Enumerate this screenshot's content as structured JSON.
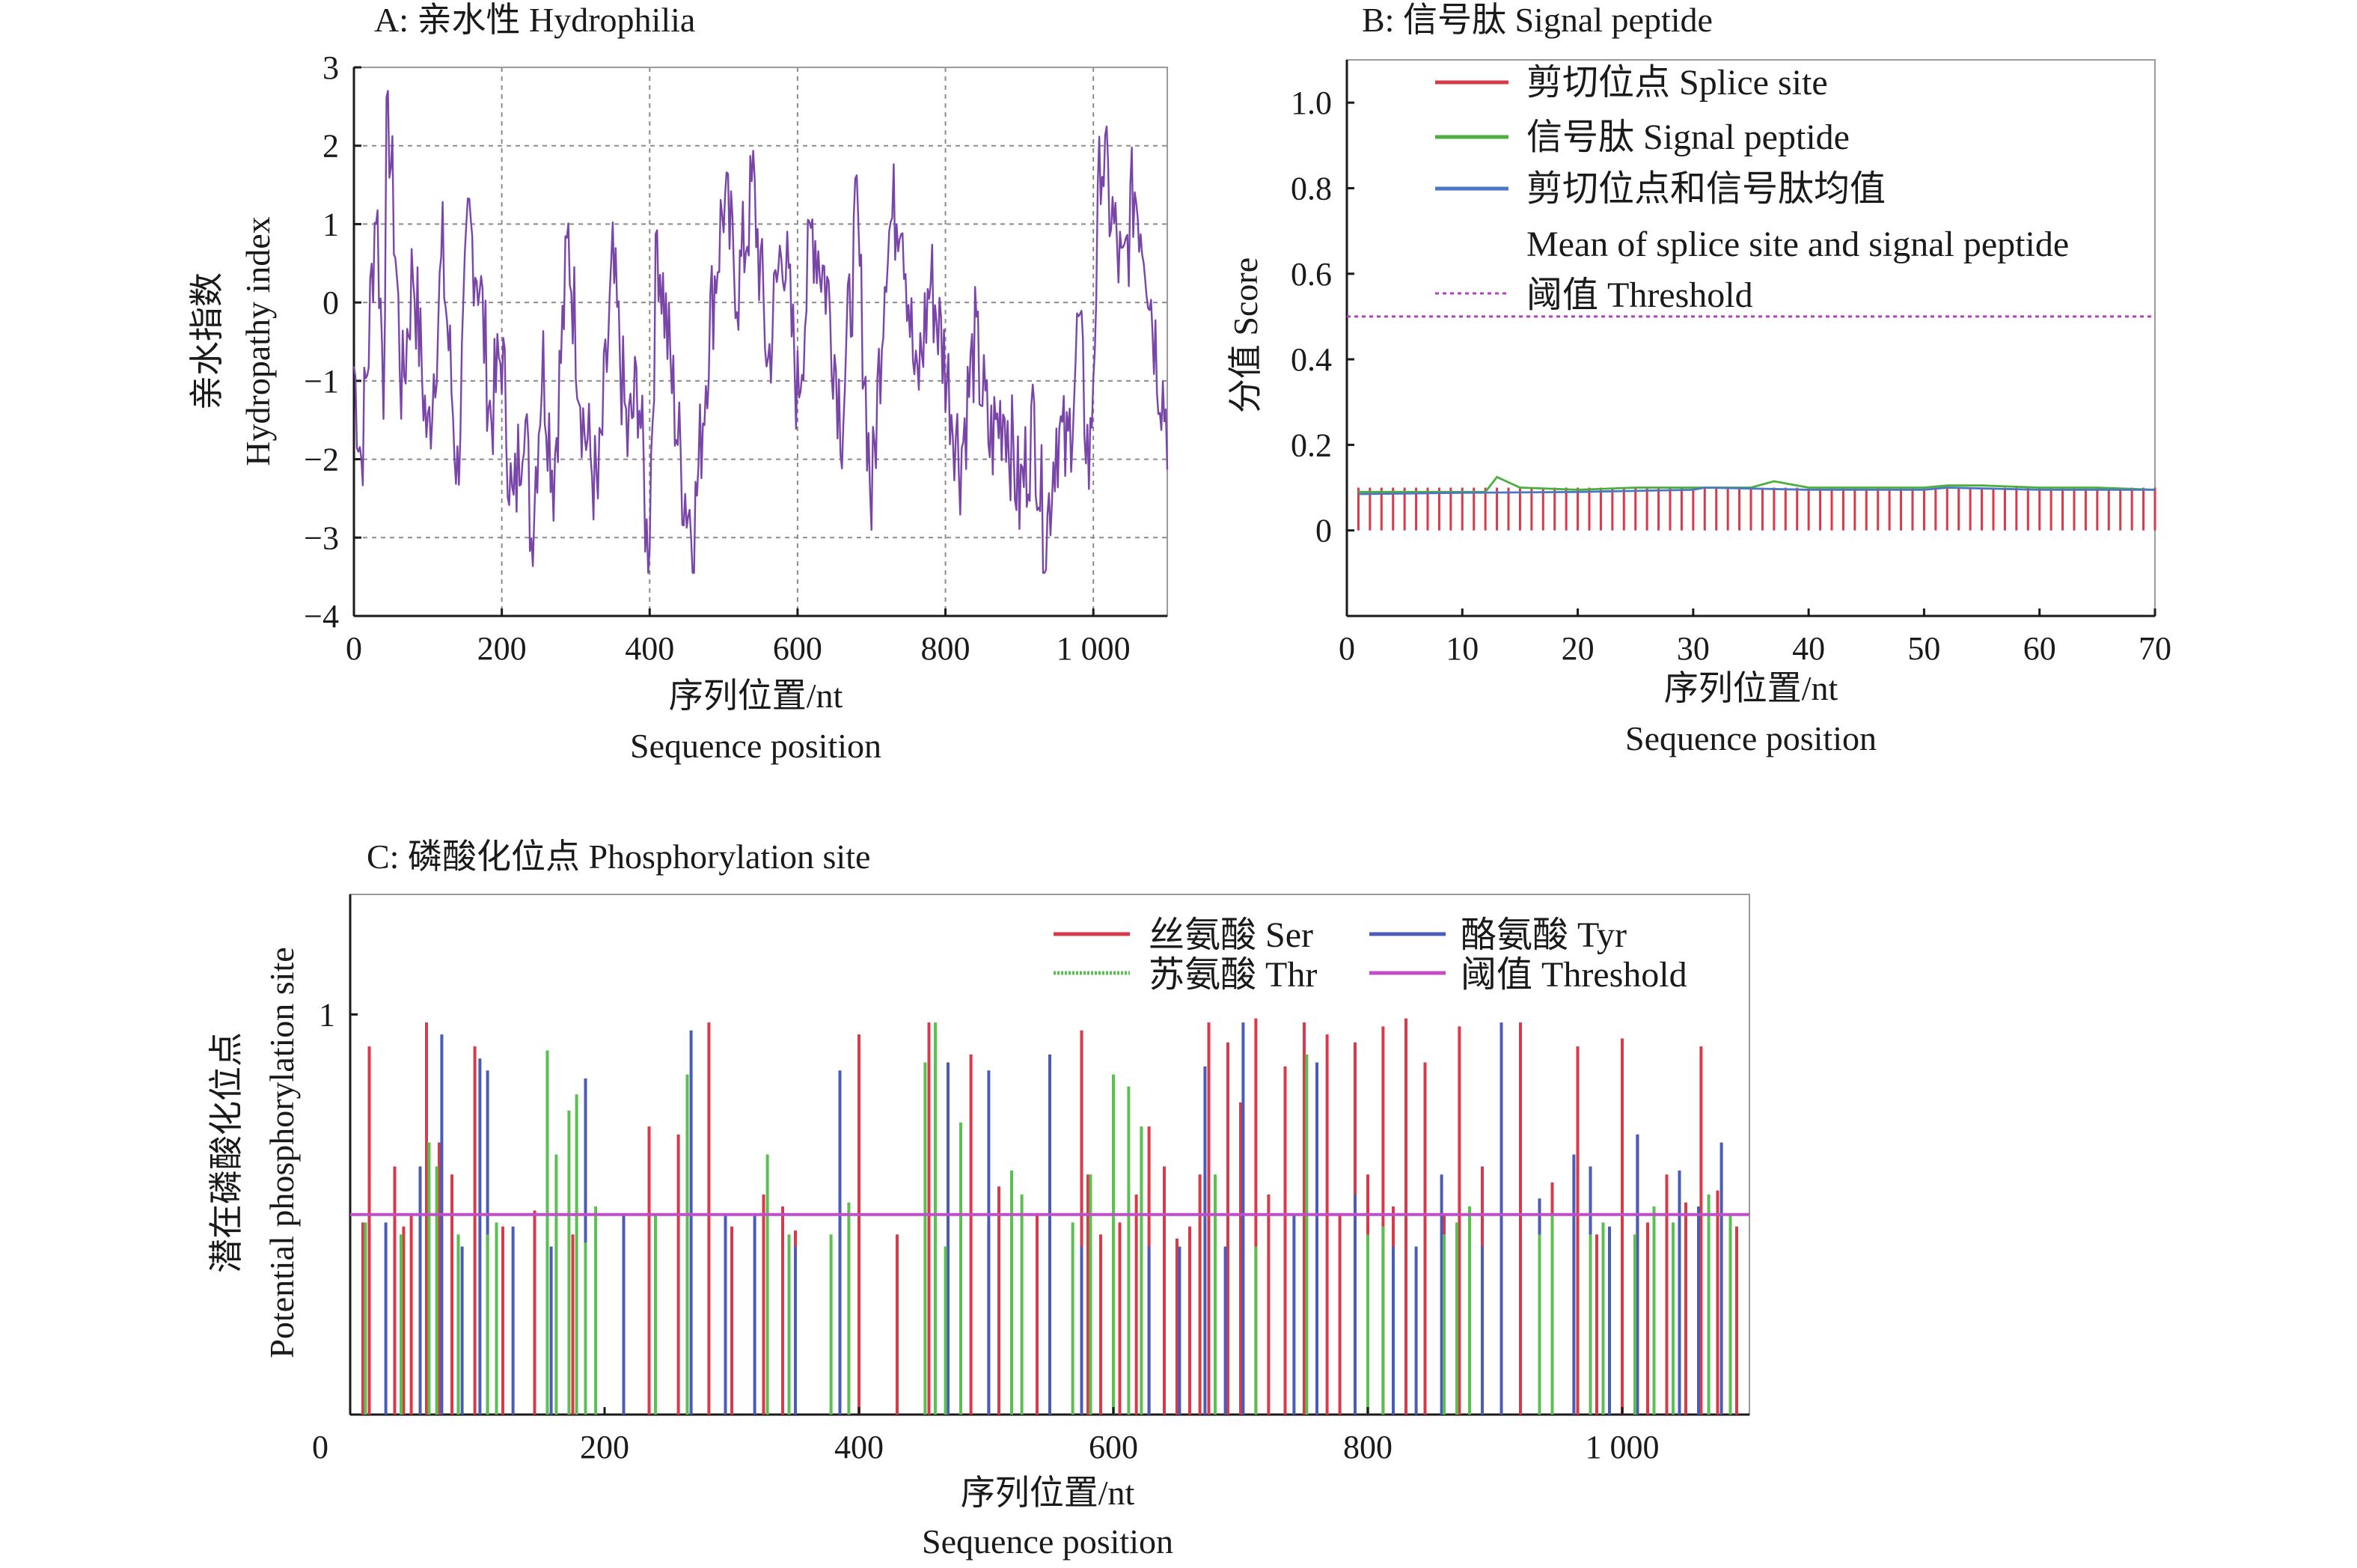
{
  "chart_data": [
    {
      "id": "A",
      "type": "line",
      "title": "A: 亲水性 Hydrophilia",
      "ylabel_cn": "亲水指数",
      "ylabel_en": "Hydropathy index",
      "xlabel_cn": "序列位置/nt",
      "xlabel_en": "Sequence position",
      "xlim": [
        0,
        1100
      ],
      "ylim": [
        -4,
        3
      ],
      "xticks": [
        0,
        200,
        400,
        600,
        800,
        1000
      ],
      "xtick_labels": [
        "0",
        "200",
        "400",
        "600",
        "800",
        "1 000"
      ],
      "yticks": [
        -4,
        -3,
        -2,
        -1,
        0,
        1,
        2,
        3
      ],
      "ytick_labels": [
        "−4",
        "−3",
        "−2",
        "−1",
        "0",
        "1",
        "2",
        "3"
      ],
      "grid_x": [
        200,
        400,
        600,
        800,
        1000
      ],
      "grid_y": [
        -3,
        -2,
        -1,
        0,
        1,
        2
      ],
      "color": "#7a45a8",
      "series_note": "hydropathy trace over ~1100 positions, approx. anchors",
      "anchors": [
        [
          0,
          -0.8
        ],
        [
          10,
          -2.0
        ],
        [
          20,
          -0.5
        ],
        [
          30,
          1.4
        ],
        [
          40,
          -1.0
        ],
        [
          45,
          2.7
        ],
        [
          55,
          0.9
        ],
        [
          65,
          -1.2
        ],
        [
          80,
          0.5
        ],
        [
          100,
          -1.8
        ],
        [
          120,
          0.6
        ],
        [
          140,
          -2.2
        ],
        [
          155,
          1.0
        ],
        [
          170,
          0.3
        ],
        [
          185,
          -1.5
        ],
        [
          200,
          -0.6
        ],
        [
          215,
          -2.8
        ],
        [
          230,
          -1.2
        ],
        [
          240,
          -3.0
        ],
        [
          255,
          -0.7
        ],
        [
          270,
          -2.2
        ],
        [
          290,
          0.8
        ],
        [
          310,
          -1.5
        ],
        [
          330,
          -2.5
        ],
        [
          350,
          0.4
        ],
        [
          370,
          -1.8
        ],
        [
          385,
          -1.0
        ],
        [
          398,
          -3.4
        ],
        [
          410,
          0.9
        ],
        [
          430,
          -1.0
        ],
        [
          445,
          -2.3
        ],
        [
          460,
          -2.9
        ],
        [
          480,
          -0.4
        ],
        [
          500,
          1.3
        ],
        [
          520,
          0.2
        ],
        [
          540,
          1.5
        ],
        [
          560,
          -0.8
        ],
        [
          580,
          0.9
        ],
        [
          600,
          -1.2
        ],
        [
          620,
          1.0
        ],
        [
          640,
          0.2
        ],
        [
          660,
          -1.5
        ],
        [
          680,
          1.1
        ],
        [
          700,
          -2.6
        ],
        [
          720,
          0.8
        ],
        [
          740,
          1.4
        ],
        [
          760,
          -1.2
        ],
        [
          780,
          0.3
        ],
        [
          800,
          -0.8
        ],
        [
          820,
          -2.0
        ],
        [
          840,
          -0.5
        ],
        [
          860,
          -1.8
        ],
        [
          880,
          -1.3
        ],
        [
          900,
          -2.5
        ],
        [
          920,
          -1.5
        ],
        [
          935,
          -3.1
        ],
        [
          950,
          -1.6
        ],
        [
          965,
          -2.0
        ],
        [
          980,
          -0.3
        ],
        [
          995,
          -2.2
        ],
        [
          1010,
          2.0
        ],
        [
          1025,
          1.1
        ],
        [
          1040,
          0.2
        ],
        [
          1055,
          1.5
        ],
        [
          1070,
          0.8
        ],
        [
          1085,
          -0.6
        ],
        [
          1100,
          -1.5
        ]
      ]
    },
    {
      "id": "B",
      "type": "line",
      "title": "B: 信号肽 Signal peptide",
      "ylabel": "分值 Score",
      "xlabel_cn": "序列位置/nt",
      "xlabel_en": "Sequence position",
      "xlim": [
        0,
        70
      ],
      "ylim": [
        -0.2,
        1.1
      ],
      "xticks": [
        0,
        10,
        20,
        30,
        40,
        50,
        60,
        70
      ],
      "xtick_labels": [
        "0",
        "10",
        "20",
        "30",
        "40",
        "50",
        "60",
        "70"
      ],
      "yticks": [
        0,
        0.2,
        0.4,
        0.6,
        0.8,
        1.0
      ],
      "ytick_labels": [
        "0",
        "0.2",
        "0.4",
        "0.6",
        "0.8",
        "1.0"
      ],
      "threshold": 0.5,
      "legend": [
        {
          "label": "剪切位点 Splice site",
          "color": "#d93a4a"
        },
        {
          "label": "信号肽 Signal peptide",
          "color": "#4cae3e"
        },
        {
          "label": "剪切位点和信号肽均值",
          "label2": "Mean of splice site and signal peptide",
          "color": "#4a78c2"
        },
        {
          "label": "阈值 Threshold",
          "color": "#b040c0",
          "dashed": true
        }
      ],
      "series": [
        {
          "name": "Splice site",
          "type": "stem",
          "x_start": 1,
          "x_end": 70,
          "values_const": 0.1
        },
        {
          "name": "Signal peptide",
          "x": [
            1,
            5,
            10,
            12,
            13,
            15,
            20,
            25,
            30,
            35,
            37,
            40,
            45,
            50,
            52,
            55,
            60,
            65,
            70
          ],
          "values": [
            0.09,
            0.09,
            0.09,
            0.09,
            0.125,
            0.1,
            0.095,
            0.1,
            0.1,
            0.1,
            0.115,
            0.1,
            0.1,
            0.1,
            0.105,
            0.105,
            0.1,
            0.1,
            0.095
          ]
        },
        {
          "name": "Mean",
          "x": [
            1,
            10,
            20,
            30,
            31,
            40,
            50,
            52,
            60,
            70
          ],
          "values": [
            0.085,
            0.088,
            0.09,
            0.095,
            0.1,
            0.095,
            0.095,
            0.1,
            0.095,
            0.095
          ]
        }
      ]
    },
    {
      "id": "C",
      "type": "bar",
      "title": "C: 磷酸化位点 Phosphorylation site",
      "ylabel_cn": "潜在磷酸化位点",
      "ylabel_en": "Potential phosphorylation site",
      "xlabel_cn": "序列位置/nt",
      "xlabel_en": "Sequence position",
      "xlim": [
        0,
        1100
      ],
      "ylim": [
        0,
        1.3
      ],
      "xticks": [
        0,
        200,
        400,
        600,
        800,
        1000
      ],
      "xtick_labels": [
        "0",
        "200",
        "400",
        "600",
        "800",
        "1 000"
      ],
      "yticks": [
        1
      ],
      "ytick_labels": [
        "1"
      ],
      "threshold": 0.5,
      "legend": [
        {
          "label": "丝氨酸 Ser",
          "color": "#d93a4a"
        },
        {
          "label": "酪氨酸 Tyr",
          "color": "#4a5cb8"
        },
        {
          "label": "苏氨酸 Thr",
          "color": "#5bbf52",
          "dashed": true
        },
        {
          "label": "阈值 Threshold",
          "color": "#c04ec8"
        }
      ],
      "series": [
        {
          "name": "Ser",
          "x": [
            10,
            15,
            35,
            42,
            48,
            60,
            70,
            80,
            98,
            120,
            145,
            175,
            235,
            258,
            265,
            282,
            300,
            325,
            340,
            350,
            400,
            430,
            455,
            470,
            488,
            502,
            510,
            540,
            575,
            580,
            590,
            605,
            618,
            628,
            640,
            650,
            660,
            668,
            675,
            690,
            700,
            712,
            722,
            735,
            750,
            768,
            778,
            790,
            800,
            812,
            820,
            830,
            845,
            860,
            872,
            890,
            905,
            920,
            945,
            965,
            980,
            1000,
            1012,
            1020,
            1035,
            1050,
            1062,
            1075,
            1090
          ],
          "values": [
            0.48,
            0.92,
            0.62,
            0.47,
            0.5,
            0.98,
            0.68,
            0.6,
            0.92,
            0.47,
            0.51,
            0.45,
            0.72,
            0.7,
            0.84,
            0.98,
            0.47,
            0.55,
            0.52,
            0.46,
            0.95,
            0.45,
            0.98,
            0.73,
            0.9,
            0.48,
            0.57,
            0.5,
            0.96,
            0.6,
            0.45,
            0.48,
            0.55,
            0.72,
            0.62,
            0.44,
            0.47,
            0.6,
            0.98,
            0.93,
            0.78,
            0.99,
            0.55,
            0.87,
            0.98,
            0.95,
            0.5,
            0.93,
            0.6,
            0.97,
            0.52,
            0.99,
            0.88,
            0.5,
            0.97,
            0.62,
            0.47,
            0.98,
            0.58,
            0.92,
            0.45,
            0.94,
            0.7,
            0.48,
            0.6,
            0.53,
            0.92,
            0.56,
            0.47
          ]
        },
        {
          "name": "Tyr",
          "x": [
            28,
            55,
            72,
            88,
            102,
            108,
            128,
            158,
            185,
            215,
            268,
            295,
            318,
            350,
            385,
            460,
            470,
            502,
            520,
            550,
            575,
            582,
            628,
            652,
            672,
            688,
            702,
            742,
            760,
            790,
            820,
            838,
            858,
            890,
            905,
            935,
            962,
            975,
            990,
            1012,
            1045,
            1060,
            1078,
            1085
          ],
          "values": [
            0.48,
            0.62,
            0.95,
            0.42,
            0.89,
            0.86,
            0.47,
            0.42,
            0.84,
            0.5,
            0.96,
            0.5,
            0.5,
            0.42,
            0.86,
            0.97,
            0.88,
            0.86,
            0.48,
            0.9,
            0.42,
            0.42,
            0.42,
            0.42,
            0.87,
            0.42,
            0.98,
            0.5,
            0.88,
            0.55,
            0.42,
            0.42,
            0.6,
            0.42,
            0.98,
            0.54,
            0.65,
            0.62,
            0.47,
            0.7,
            0.61,
            0.52,
            0.68,
            0.42
          ]
        },
        {
          "name": "Thr",
          "x": [
            12,
            40,
            62,
            68,
            85,
            108,
            115,
            155,
            162,
            172,
            178,
            185,
            193,
            240,
            265,
            328,
            345,
            378,
            392,
            452,
            460,
            468,
            480,
            520,
            528,
            568,
            582,
            600,
            612,
            622,
            680,
            712,
            752,
            800,
            812,
            860,
            870,
            880,
            935,
            945,
            975,
            985,
            1010,
            1025,
            1040,
            1068,
            1085
          ],
          "values": [
            0.48,
            0.45,
            0.68,
            0.62,
            0.45,
            0.45,
            0.48,
            0.91,
            0.65,
            0.76,
            0.8,
            0.43,
            0.52,
            0.5,
            0.85,
            0.65,
            0.45,
            0.45,
            0.53,
            0.88,
            0.98,
            0.42,
            0.73,
            0.61,
            0.55,
            0.48,
            0.6,
            0.85,
            0.82,
            0.72,
            0.6,
            0.42,
            0.9,
            0.45,
            0.47,
            0.45,
            0.48,
            0.52,
            0.45,
            0.5,
            0.45,
            0.48,
            0.45,
            0.52,
            0.48,
            0.55,
            0.5
          ]
        }
      ]
    }
  ]
}
